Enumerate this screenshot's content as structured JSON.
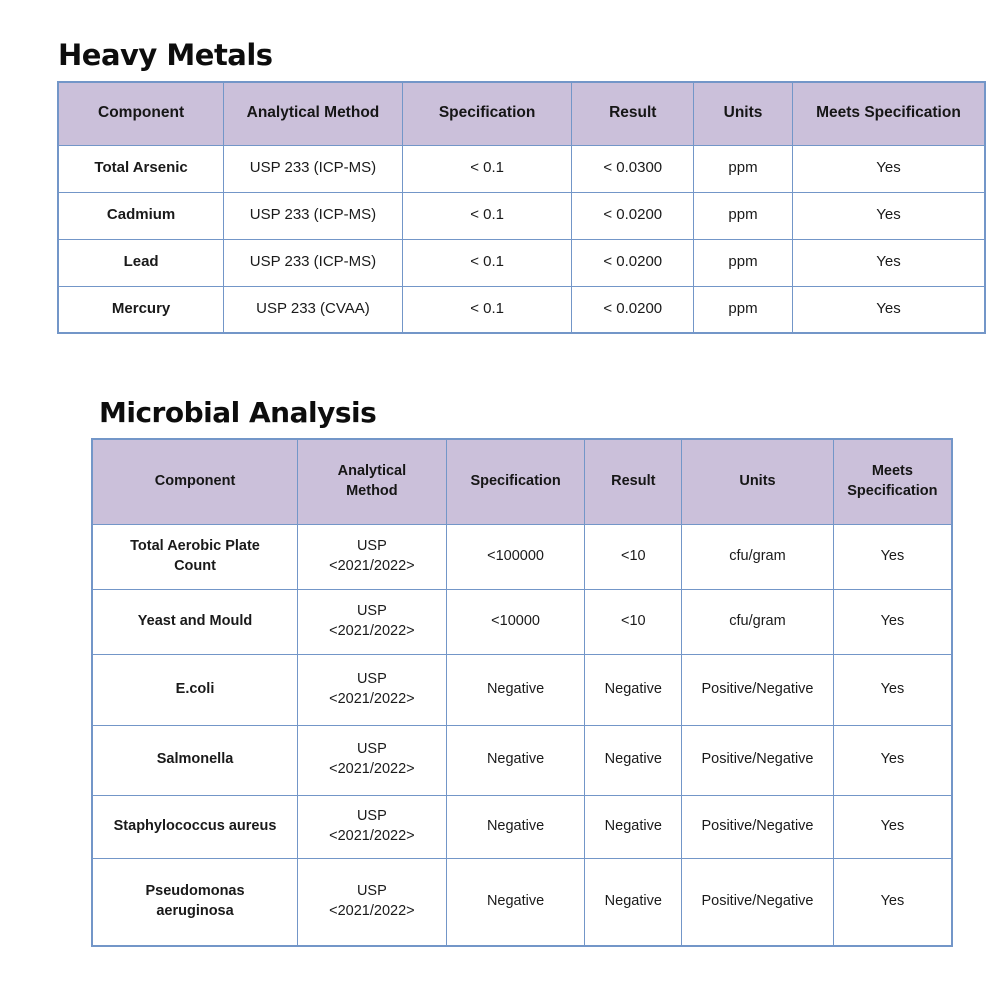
{
  "colors": {
    "page_background": "#ffffff",
    "header_cell_background": "#cbc0da",
    "table_border": "#7396c8",
    "text": "#1a1a1a"
  },
  "tables": {
    "heavy_metals": {
      "title": "Heavy Metals",
      "columns": [
        "Component",
        "Analytical Method",
        "Specification",
        "Result",
        "Units",
        "Meets Specification"
      ],
      "rows": [
        [
          "Total Arsenic",
          "USP 233 (ICP-MS)",
          "< 0.1",
          "< 0.0300",
          "ppm",
          "Yes"
        ],
        [
          "Cadmium",
          "USP 233 (ICP-MS)",
          "< 0.1",
          "< 0.0200",
          "ppm",
          "Yes"
        ],
        [
          "Lead",
          "USP 233 (ICP-MS)",
          "< 0.1",
          "< 0.0200",
          "ppm",
          "Yes"
        ],
        [
          "Mercury",
          "USP 233 (CVAA)",
          "< 0.1",
          "< 0.0200",
          "ppm",
          "Yes"
        ]
      ]
    },
    "microbial_analysis": {
      "title": "Microbial Analysis",
      "columns": [
        "Component",
        "Analytical\nMethod",
        "Specification",
        "Result",
        "Units",
        "Meets\nSpecification"
      ],
      "rows": [
        [
          "Total Aerobic Plate\nCount",
          "USP\n<2021/2022>",
          "<100000",
          "<10",
          "cfu/gram",
          "Yes"
        ],
        [
          "Yeast and Mould",
          "USP\n<2021/2022>",
          "<10000",
          "<10",
          "cfu/gram",
          "Yes"
        ],
        [
          "E.coli",
          "USP\n<2021/2022>",
          "Negative",
          "Negative",
          "Positive/Negative",
          "Yes"
        ],
        [
          "Salmonella",
          "USP\n<2021/2022>",
          "Negative",
          "Negative",
          "Positive/Negative",
          "Yes"
        ],
        [
          "Staphylococcus aureus",
          "USP\n<2021/2022>",
          "Negative",
          "Negative",
          "Positive/Negative",
          "Yes"
        ],
        [
          "Pseudomonas\naeruginosa",
          "USP\n<2021/2022>",
          "Negative",
          "Negative",
          "Positive/Negative",
          "Yes"
        ]
      ]
    }
  }
}
